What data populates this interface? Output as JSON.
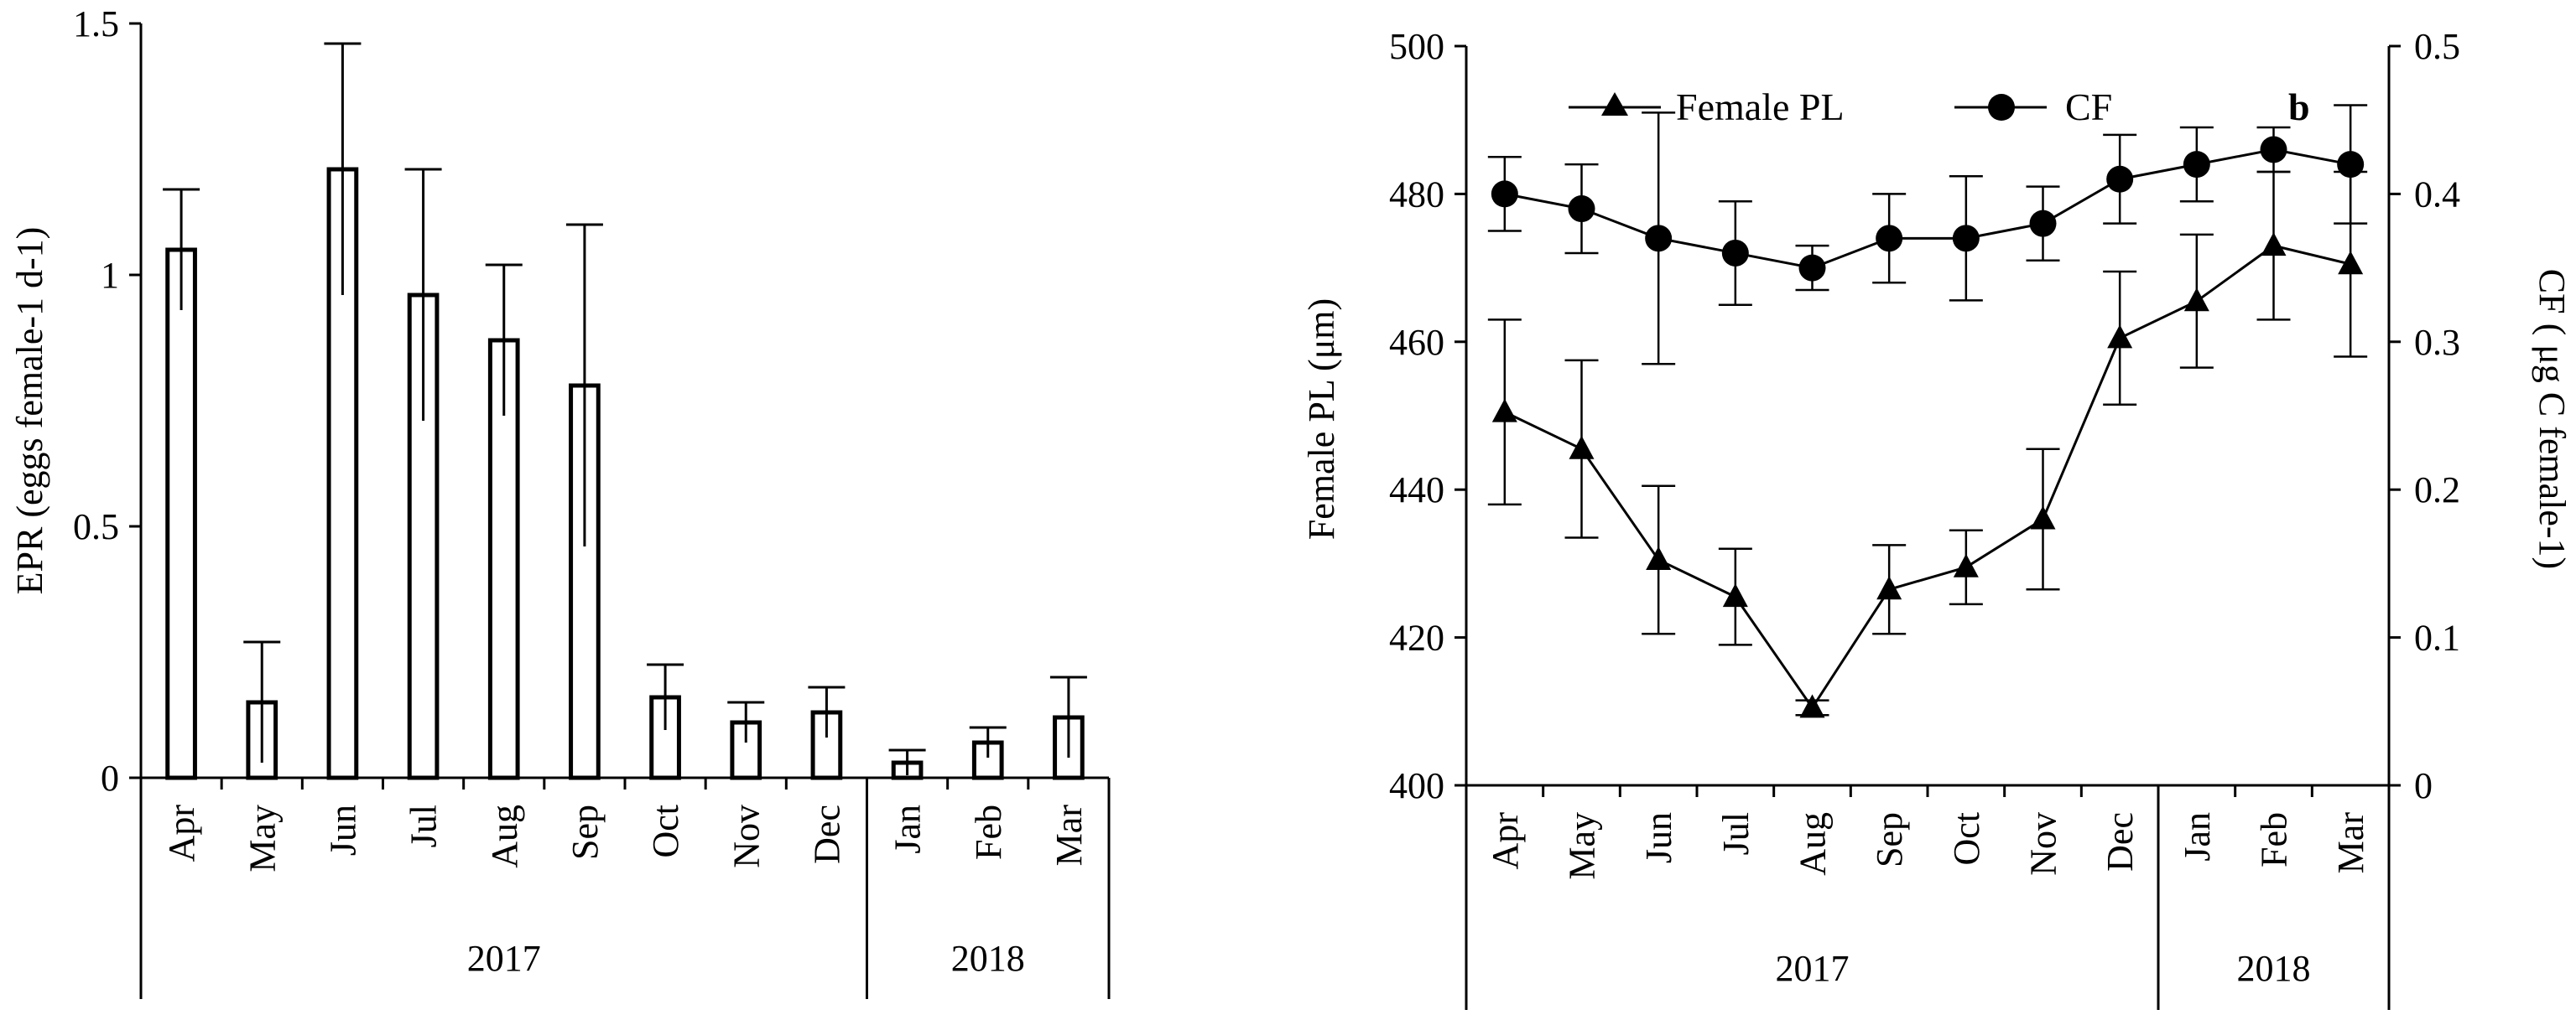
{
  "colors": {
    "ink": "#000000",
    "background": "#ffffff",
    "bar_fill": "#ffffff"
  },
  "chart_data": [
    {
      "type": "bar",
      "ylabel": "EPR (eggs female-1 d-1)",
      "ylim": [
        0,
        1.5
      ],
      "yticks": [
        0,
        0.5,
        1,
        1.5
      ],
      "ytick_labels": [
        "0",
        "0.5",
        "1",
        "1.5"
      ],
      "categories": [
        "Apr",
        "May",
        "Jun",
        "Jul",
        "Aug",
        "Sep",
        "Oct",
        "Nov",
        "Dec",
        "Jan",
        "Feb",
        "Mar"
      ],
      "year_groups": [
        {
          "label": "2017",
          "start": 0,
          "end": 8
        },
        {
          "label": "2018",
          "start": 9,
          "end": 11
        }
      ],
      "values": [
        1.05,
        0.15,
        1.21,
        0.96,
        0.87,
        0.78,
        0.16,
        0.11,
        0.13,
        0.03,
        0.07,
        0.12
      ],
      "errors": [
        0.12,
        0.12,
        0.25,
        0.25,
        0.15,
        0.32,
        0.065,
        0.04,
        0.05,
        0.025,
        0.03,
        0.08
      ]
    },
    {
      "type": "line",
      "ylabel": "Female PL (μm)",
      "ylabel2": "CF ( μg C female-1)",
      "ylim": [
        400,
        500
      ],
      "yticks": [
        400,
        420,
        440,
        460,
        480,
        500
      ],
      "ytick_labels": [
        "400",
        "420",
        "440",
        "460",
        "480",
        "500"
      ],
      "ylim2": [
        0,
        0.5
      ],
      "yticks2": [
        0,
        0.1,
        0.2,
        0.3,
        0.4,
        0.5
      ],
      "ytick_labels2": [
        "0",
        "0.1",
        "0.2",
        "0.3",
        "0.4",
        "0.5"
      ],
      "categories": [
        "Apr",
        "May",
        "Jun",
        "Jul",
        "Aug",
        "Sep",
        "Oct",
        "Nov",
        "Dec",
        "Jan",
        "Feb",
        "Mar"
      ],
      "year_groups": [
        {
          "label": "2017",
          "start": 0,
          "end": 8
        },
        {
          "label": "2018",
          "start": 9,
          "end": 11
        }
      ],
      "legend": {
        "female_pl": "Female PL",
        "cf": "CF"
      },
      "annotation": "b",
      "series": [
        {
          "name": "Female PL",
          "axis": "left",
          "marker": "triangle",
          "values": [
            450.5,
            445.5,
            430.5,
            425.5,
            410.5,
            426.5,
            429.5,
            436,
            460.5,
            465.5,
            473,
            470.5
          ],
          "errors": [
            12.5,
            12,
            10,
            6.5,
            1,
            6,
            5,
            9.5,
            9,
            9,
            10,
            12.5
          ]
        },
        {
          "name": "CF",
          "axis": "right",
          "marker": "circle",
          "values": [
            0.4,
            0.39,
            0.37,
            0.36,
            0.35,
            0.37,
            0.37,
            0.38,
            0.41,
            0.42,
            0.43,
            0.42
          ],
          "errors": [
            0.025,
            0.03,
            0.085,
            0.035,
            0.015,
            0.03,
            0.042,
            0.025,
            0.03,
            0.025,
            0.015,
            0.04
          ]
        }
      ]
    }
  ]
}
